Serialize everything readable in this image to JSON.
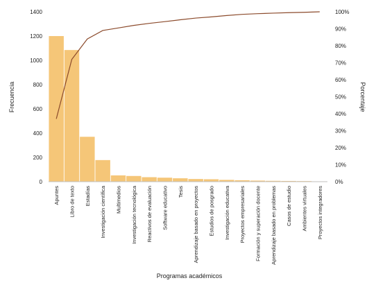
{
  "chart_data": {
    "type": "bar",
    "categories": [
      "Apuntes",
      "Libro de texto",
      "Estadías",
      "Investigación científica",
      "Multimedios",
      "Investigación tecnológica",
      "Reactivos de evaluación",
      "Software educativo",
      "Tesis",
      "Aprendizaje basado en proyectos",
      "Estudios de posgrado",
      "Investigación educativa",
      "Proyectos empresariales",
      "Formación y superación docente",
      "Aprendizaje basado en problemas",
      "Casos de estudio",
      "Ambientes virtuales",
      "Proyectos integradores"
    ],
    "series": [
      {
        "name": "",
        "type": "bar",
        "axis": "left",
        "color": "#f5c678",
        "values": [
          1200,
          1085,
          370,
          178,
          52,
          47,
          37,
          33,
          28,
          22,
          20,
          15,
          12,
          9,
          7,
          6,
          5,
          3
        ]
      },
      {
        "name": "",
        "type": "line",
        "axis": "right",
        "color": "#8b4a2b",
        "values": [
          37,
          72,
          84,
          89,
          90.5,
          92,
          93.2,
          94.2,
          95.3,
          96.3,
          97,
          97.8,
          98.5,
          98.9,
          99.2,
          99.5,
          99.7,
          100
        ]
      }
    ],
    "xlabel": "Programas académicos",
    "ylabel": "Frecuencia",
    "y2label": "Porcentaje",
    "ylim": [
      0,
      1400
    ],
    "yticks": [
      "0",
      "200",
      "400",
      "600",
      "800",
      "1000",
      "1200",
      "1400"
    ],
    "y2lim": [
      0,
      100
    ],
    "y2ticks": [
      "0%",
      "10%",
      "20%",
      "30%",
      "40%",
      "50%",
      "60%",
      "70%",
      "80%",
      "90%",
      "100%"
    ],
    "grid": false,
    "legend": "none"
  }
}
